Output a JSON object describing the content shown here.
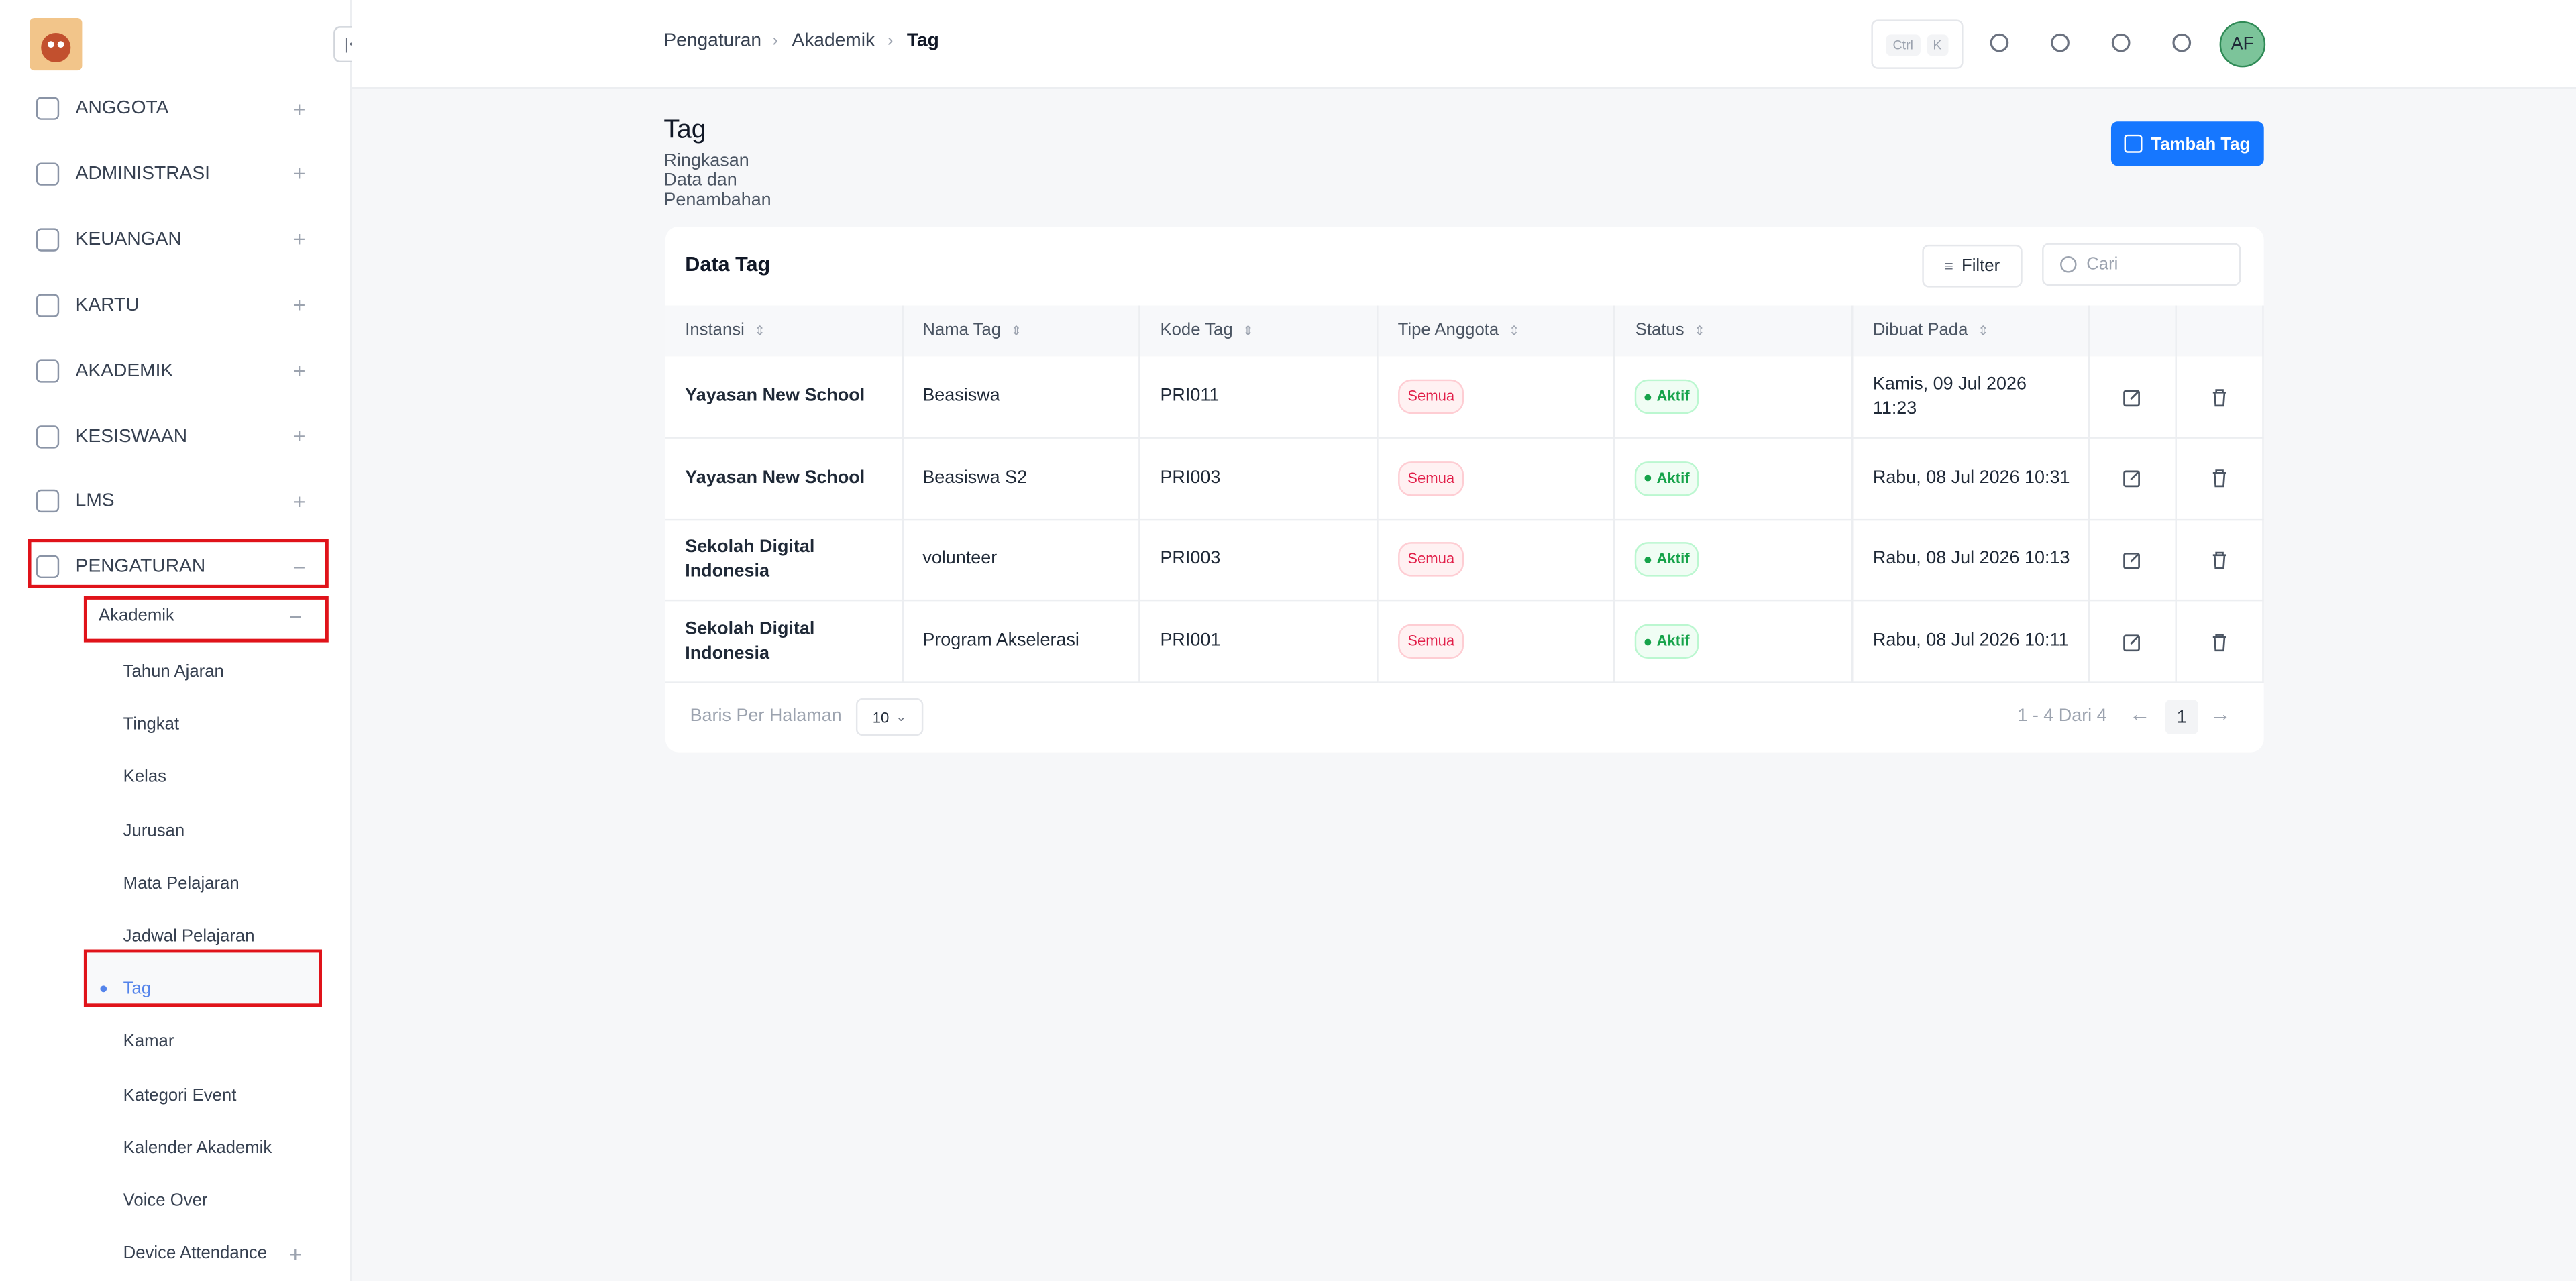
{
  "topbar": {
    "breadcrumb": [
      "Pengaturan",
      "Akademik",
      "Tag"
    ],
    "shortcut": [
      "Ctrl",
      "K"
    ],
    "avatar": "AF"
  },
  "sidebar": {
    "menu": [
      "ANGGOTA",
      "ADMINISTRASI",
      "KEUANGAN",
      "KARTU",
      "AKADEMIK",
      "KESISWAAN",
      "LMS",
      "PENGATURAN"
    ],
    "submenu": "Akademik",
    "subitems": [
      "Tahun Ajaran",
      "Tingkat",
      "Kelas",
      "Jurusan",
      "Mata Pelajaran",
      "Jadwal Pelajaran",
      "Tag",
      "Kamar",
      "Kategori Event",
      "Kalender Akademik",
      "Voice Over",
      "Device Attendance"
    ]
  },
  "page": {
    "title": "Tag",
    "subtitle": "Ringkasan Data dan Penambahan",
    "add_button": "Tambah Tag"
  },
  "table": {
    "title": "Data Tag",
    "filter": "Filter",
    "search_placeholder": "Cari",
    "columns": [
      "Instansi",
      "Nama Tag",
      "Kode Tag",
      "Tipe Anggota",
      "Status",
      "Dibuat Pada"
    ],
    "rows": [
      [
        "Yayasan New School",
        "Beasiswa",
        "PRI011",
        "Semua",
        "Aktif",
        "Kamis, 09 Jul 2026 11:23"
      ],
      [
        "Yayasan New School",
        "Beasiswa S2",
        "PRI003",
        "Semua",
        "Aktif",
        "Rabu, 08 Jul 2026 10:31"
      ],
      [
        "Sekolah Digital Indonesia",
        "volunteer",
        "PRI003",
        "Semua",
        "Aktif",
        "Rabu, 08 Jul 2026 10:13"
      ],
      [
        "Sekolah Digital Indonesia",
        "Program Akselerasi",
        "PRI001",
        "Semua",
        "Aktif",
        "Rabu, 08 Jul 2026 10:11"
      ]
    ]
  },
  "pagination": {
    "rows_per_page_label": "Baris Per Halaman",
    "rows_per_page": "10",
    "range": "1 - 4 Dari 4",
    "page": "1"
  }
}
